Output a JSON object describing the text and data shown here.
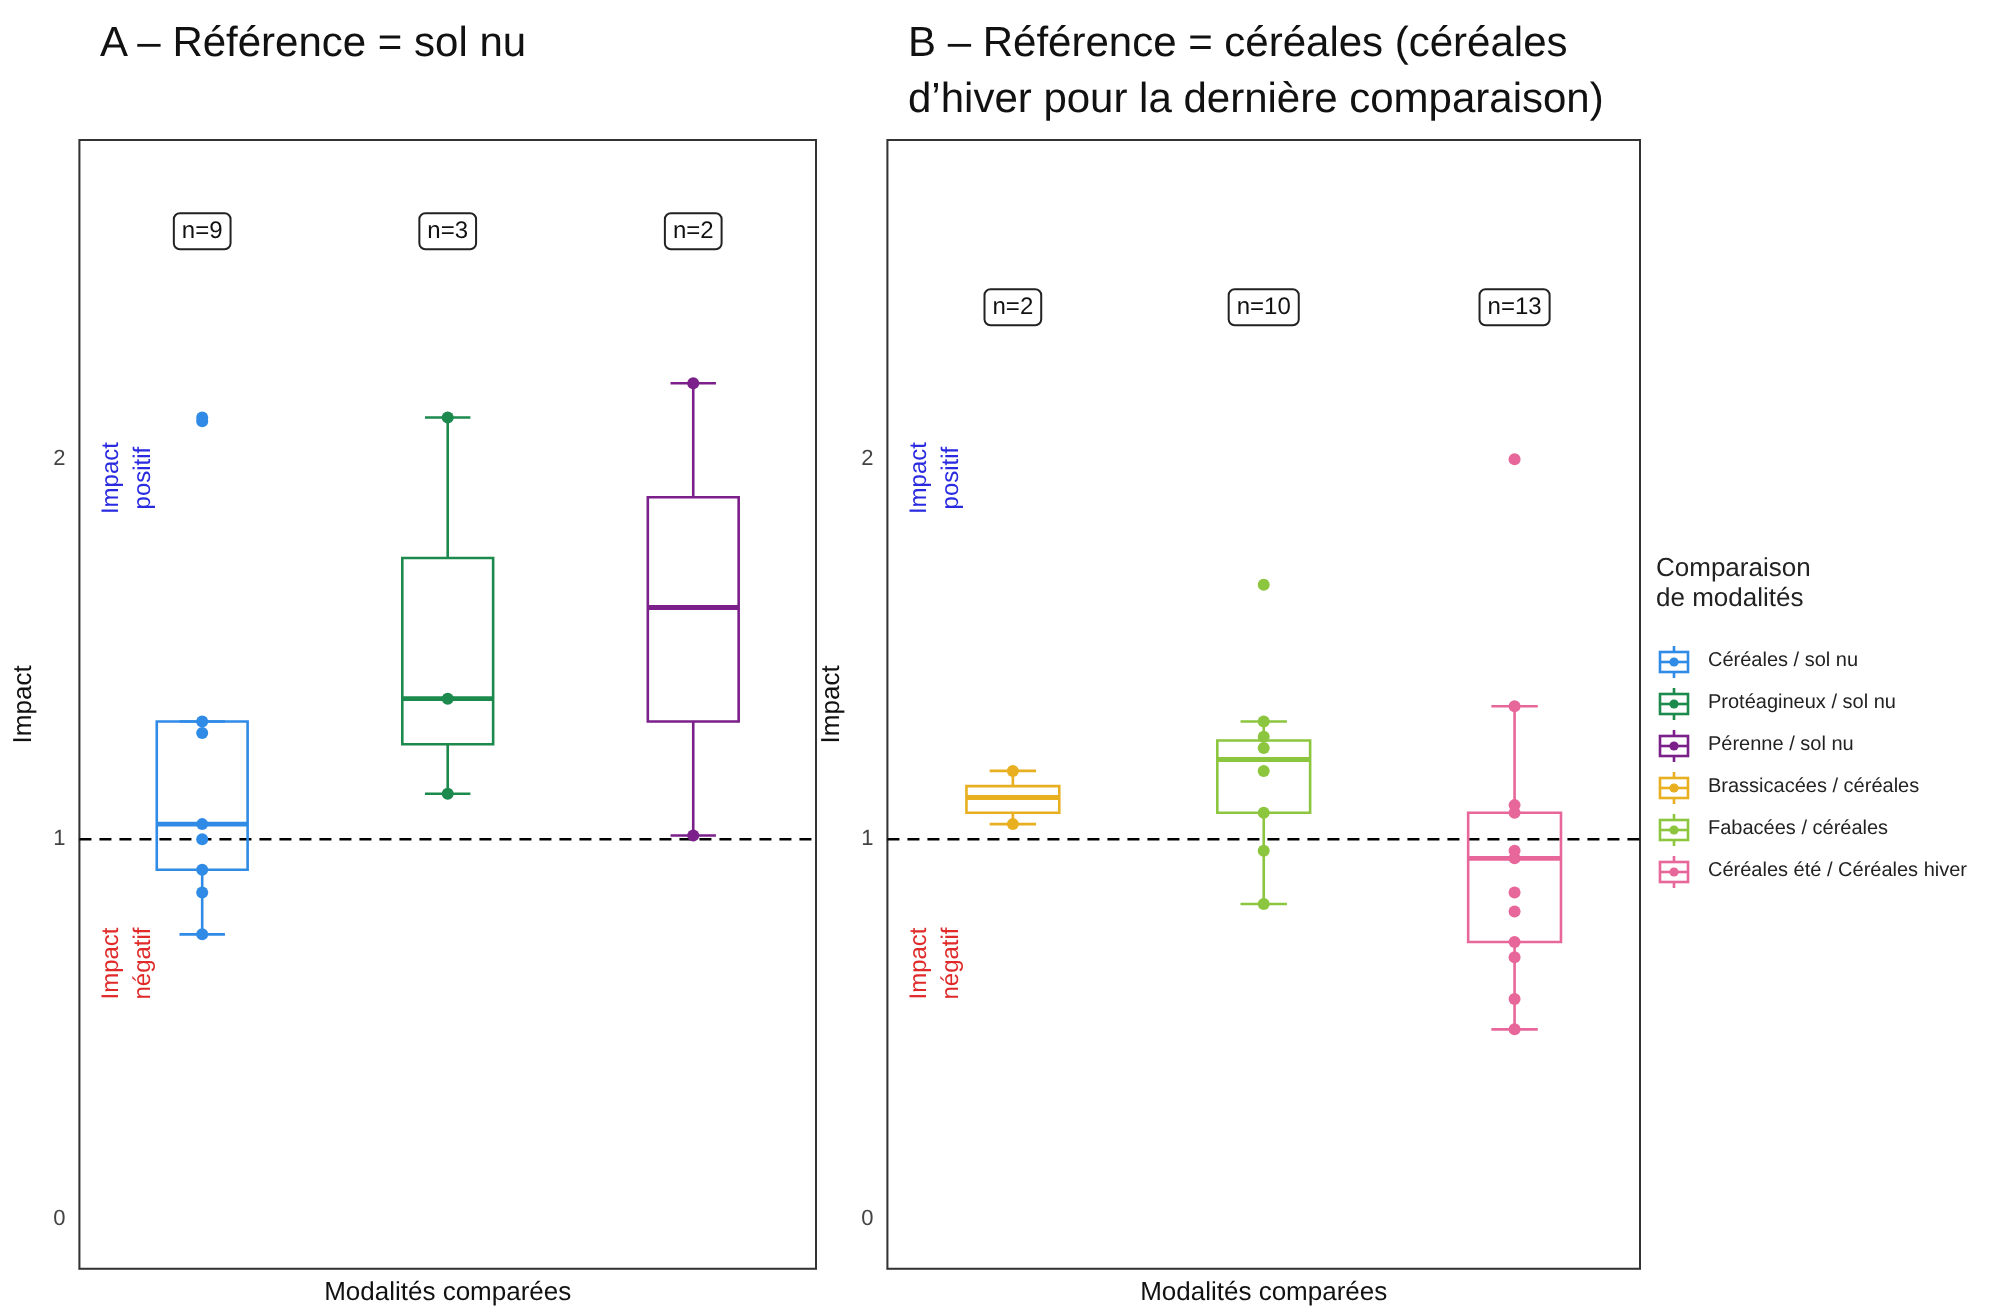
{
  "chart_data": [
    {
      "type": "box",
      "title": "A – Référence = sol nu",
      "xlabel": "Modalités comparées",
      "ylabel": "Impact",
      "categories": [
        null,
        null,
        null
      ],
      "ylim": [
        -0.13,
        2.84
      ],
      "yticks": [
        0,
        1,
        2
      ],
      "tick_labels": "y",
      "grid": false,
      "legend": "right",
      "legend_title": "Comparaison de modalités",
      "series": [
        {
          "name": "Céréales / sol nu",
          "color": "#2f8be6",
          "boxes": [
            {
              "low": 0.75,
              "q1": 0.92,
              "median": 1.04,
              "q3": 1.31,
              "high": 1.31,
              "outliers": [
                2.11,
                2.1,
                1.31,
                1.28,
                1.04,
                1.0,
                0.92,
                0.86,
                0.75
              ]
            },
            null,
            null
          ]
        },
        {
          "name": "Protéagineux / sol nu",
          "color": "#1b8a4c",
          "boxes": [
            null,
            {
              "low": 1.12,
              "q1": 1.25,
              "median": 1.37,
              "q3": 1.74,
              "high": 2.11,
              "outliers": [
                2.11,
                1.37,
                1.12
              ]
            },
            null
          ]
        },
        {
          "name": "Pérenne / sol nu",
          "color": "#7b1f8a",
          "boxes": [
            null,
            null,
            {
              "low": 1.01,
              "q1": 1.31,
              "median": 1.61,
              "q3": 1.9,
              "high": 2.2,
              "outliers": [
                2.2,
                1.01
              ]
            }
          ]
        }
      ],
      "ref_lines": [
        {
          "axis": "y",
          "value": 1,
          "color": "#000000",
          "line_style": "dashed"
        }
      ],
      "annotations": [
        {
          "text": "n=9",
          "y": 2.6
        },
        {
          "text": "n=3",
          "y": 2.6
        },
        {
          "text": "n=2",
          "y": 2.6
        },
        "Impact positif",
        "Impact négatif"
      ]
    },
    {
      "type": "box",
      "title": "B – Référence = céréales (céréales d’hiver pour la dernière comparaison)",
      "xlabel": "Modalités comparées",
      "ylabel": "Impact",
      "categories": [
        null,
        null,
        null
      ],
      "ylim": [
        -0.13,
        2.84
      ],
      "yticks": [
        0,
        1,
        2
      ],
      "tick_labels": "y",
      "grid": false,
      "legend": "right",
      "series": [
        {
          "name": "Brassicacées / céréales",
          "color": "#e8b020",
          "boxes": [
            {
              "low": 1.04,
              "q1": 1.07,
              "median": 1.11,
              "q3": 1.14,
              "high": 1.18,
              "outliers": [
                1.18,
                1.04
              ]
            },
            null,
            null
          ]
        },
        {
          "name": "Fabacées / céréales",
          "color": "#8cc63f",
          "boxes": [
            null,
            {
              "low": 0.83,
              "q1": 1.07,
              "median": 1.21,
              "q3": 1.26,
              "high": 1.31,
              "outliers": [
                1.67,
                1.31,
                1.27,
                1.24,
                1.18,
                1.07,
                0.97,
                0.83
              ]
            },
            null
          ]
        },
        {
          "name": "Céréales été / Céréales hiver",
          "color": "#e8679a",
          "boxes": [
            null,
            null,
            {
              "low": 0.5,
              "q1": 0.73,
              "median": 0.95,
              "q3": 1.07,
              "high": 1.35,
              "outliers": [
                2.0,
                1.35,
                1.09,
                1.07,
                0.97,
                0.95,
                0.86,
                0.81,
                0.73,
                0.69,
                0.58,
                0.5
              ]
            }
          ]
        }
      ],
      "ref_lines": [
        {
          "axis": "y",
          "value": 1,
          "color": "#000000",
          "line_style": "dashed"
        }
      ],
      "annotations": [
        {
          "text": "n=2",
          "y": 2.4
        },
        {
          "text": "n=10",
          "y": 2.4
        },
        {
          "text": "n=13",
          "y": 2.4
        },
        "Impact positif",
        "Impact négatif"
      ]
    }
  ]
}
